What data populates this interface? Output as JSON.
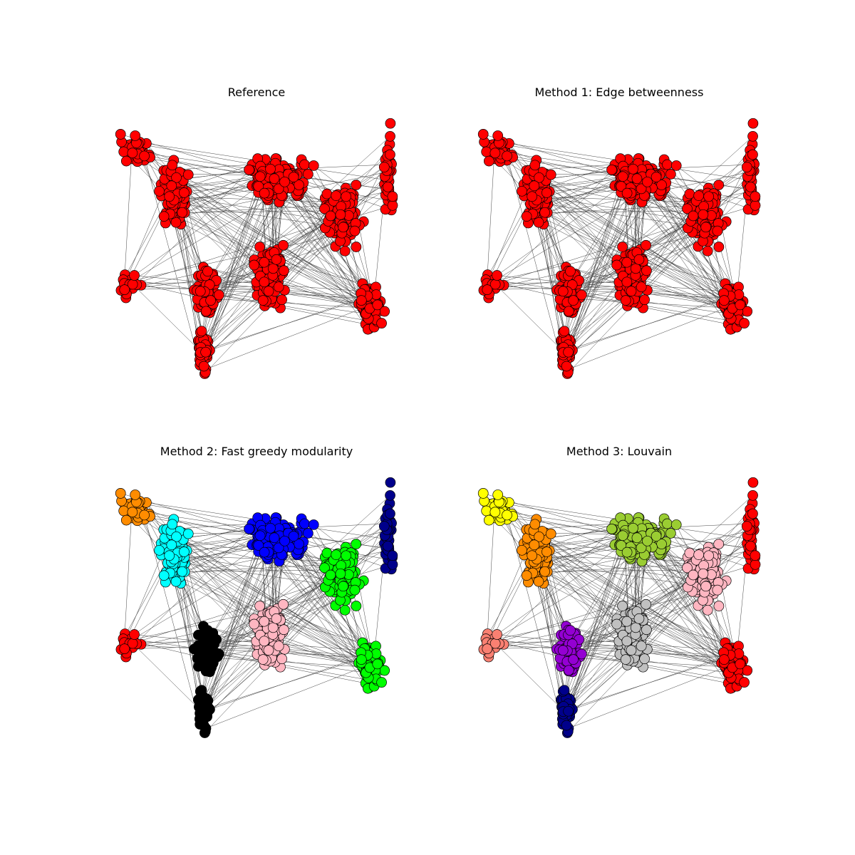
{
  "figure": {
    "panels": [
      {
        "id": "reference",
        "title": "Reference",
        "palette": [
          "#ff0000"
        ]
      },
      {
        "id": "edge-betweenness",
        "title": "Method 1: Edge betweenness",
        "palette": [
          "#ff0000"
        ]
      },
      {
        "id": "fast-greedy",
        "title": "Method 2: Fast greedy modularity",
        "palette": [
          "#ff8c00",
          "#0000ff",
          "#00ffff",
          "#000000",
          "#ffb6c1",
          "#00ff00",
          "#ff0000",
          "#ffff00",
          "#ffffff",
          "#ff00ff",
          "#00008b",
          "#9400d3",
          "#9acd32",
          "#fa8072",
          "#006400"
        ]
      },
      {
        "id": "louvain",
        "title": "Method 3: Louvain",
        "palette": [
          "#ffff00",
          "#9acd32",
          "#ff8c00",
          "#00ff00",
          "#00ffff",
          "#ffb6c1",
          "#ff0000",
          "#00008b",
          "#9400d3",
          "#c0c0c0",
          "#fa8072",
          "#ff00ff",
          "#ffffff",
          "#006400"
        ]
      }
    ],
    "edge_color": "#444444",
    "node_stroke": "#000000"
  }
}
